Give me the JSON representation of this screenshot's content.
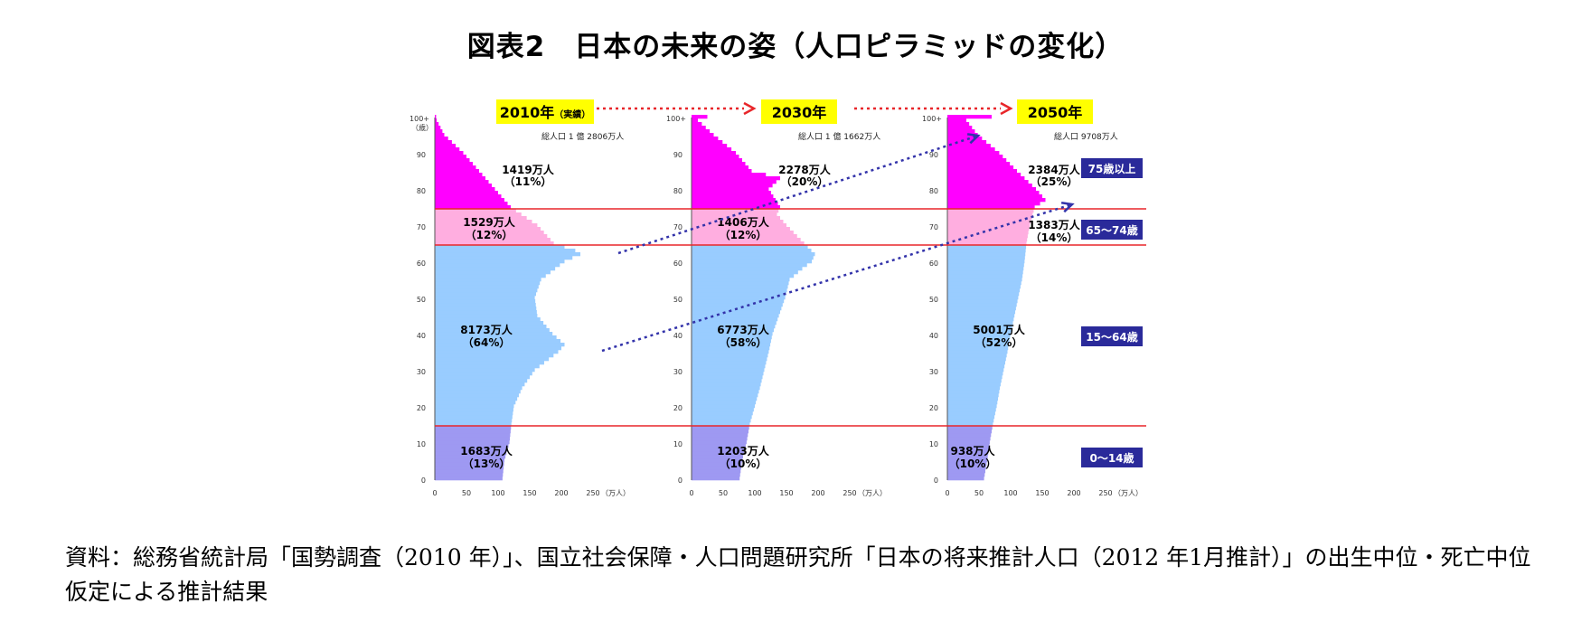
{
  "title": "図表2　日本の未来の姿（人口ピラミッドの変化）",
  "source_note": "資料：総務省統計局「国勢調査（2010 年）」、国立社会保障・人口問題研究所「日本の将来推計人口（2012 年1月推計）」の出生中位・死亡中位仮定による推計結果",
  "colors": {
    "age_75_plus": "#ff00ff",
    "age_65_74": "#ffaee0",
    "age_15_64": "#99ccff",
    "age_0_14": "#9e99f2",
    "boundary_line": "#e8262a",
    "year_label_bg": "#ffff00",
    "arrow": "#e8262a",
    "cohort_line": "#3333aa",
    "age_badge_bg": "#2a2a9a"
  },
  "chart_data": {
    "type": "bar",
    "orientation": "horizontal",
    "y_axis": {
      "top_label": "100+",
      "unit_label": "（歳）",
      "ticks": [
        "0",
        "10",
        "20",
        "30",
        "40",
        "50",
        "60",
        "70",
        "80",
        "90"
      ],
      "range": [
        0,
        100
      ]
    },
    "x_axis": {
      "ticks": [
        "0",
        "50",
        "100",
        "150",
        "200",
        "250"
      ],
      "unit_label": "（万人）",
      "range": [
        0,
        250
      ]
    },
    "age_bands": [
      {
        "label": "75歳以上",
        "from": 75,
        "to": 101
      },
      {
        "label": "65～74歳",
        "from": 65,
        "to": 75
      },
      {
        "label": "15～64歳",
        "from": 15,
        "to": 65
      },
      {
        "label": "0～14歳",
        "from": 0,
        "to": 15
      }
    ],
    "panels": [
      {
        "year_label": "2010年",
        "year_note": "（実績）",
        "total_population": "総人口 1 億 2806万人",
        "groups": [
          {
            "band": "75歳以上",
            "value": "1419万人",
            "share": "（11%）"
          },
          {
            "band": "65～74歳",
            "value": "1529万人",
            "share": "（12%）"
          },
          {
            "band": "15～64歳",
            "value": "8173万人",
            "share": "（64%）"
          },
          {
            "band": "0～14歳",
            "value": "1683万人",
            "share": "（13%）"
          }
        ],
        "ages": [
          0,
          5,
          10,
          15,
          20,
          25,
          30,
          35,
          37,
          40,
          45,
          50,
          55,
          60,
          62,
          63,
          65,
          70,
          75,
          80,
          85,
          90,
          95,
          99,
          100
        ],
        "values": [
          107,
          110,
          118,
          121,
          125,
          138,
          158,
          195,
          205,
          186,
          162,
          158,
          168,
          205,
          230,
          222,
          188,
          162,
          120,
          95,
          70,
          45,
          15,
          3,
          2
        ]
      },
      {
        "year_label": "2030年",
        "year_note": "",
        "total_population": "総人口 1 億 1662万人",
        "groups": [
          {
            "band": "75歳以上",
            "value": "2278万人",
            "share": "（20%）"
          },
          {
            "band": "65～74歳",
            "value": "1406万人",
            "share": "（12%）"
          },
          {
            "band": "15～64歳",
            "value": "6773万人",
            "share": "（58%）"
          },
          {
            "band": "0～14歳",
            "value": "1203万人",
            "share": "（10%）"
          }
        ],
        "ages": [
          0,
          5,
          10,
          15,
          20,
          25,
          30,
          35,
          40,
          45,
          50,
          55,
          58,
          60,
          62,
          65,
          70,
          73,
          75,
          80,
          83,
          85,
          90,
          95,
          99,
          100
        ],
        "values": [
          76,
          80,
          87,
          92,
          100,
          108,
          115,
          122,
          128,
          138,
          148,
          155,
          175,
          190,
          195,
          178,
          150,
          135,
          140,
          122,
          140,
          95,
          70,
          35,
          10,
          25
        ]
      },
      {
        "year_label": "2050年",
        "year_note": "",
        "total_population": "総人口 9708万人",
        "groups": [
          {
            "band": "75歳以上",
            "value": "2384万人",
            "share": "（25%）"
          },
          {
            "band": "65～74歳",
            "value": "1383万人",
            "share": "（14%）"
          },
          {
            "band": "15～64歳",
            "value": "5001万人",
            "share": "（52%）"
          },
          {
            "band": "0～14歳",
            "value": "938万人",
            "share": "（10%）"
          }
        ],
        "ages": [
          0,
          5,
          10,
          15,
          20,
          25,
          30,
          35,
          40,
          45,
          50,
          55,
          60,
          65,
          70,
          75,
          77,
          80,
          85,
          90,
          95,
          99,
          100
        ],
        "values": [
          58,
          63,
          67,
          72,
          78,
          83,
          89,
          95,
          100,
          106,
          112,
          118,
          122,
          125,
          130,
          138,
          155,
          140,
          110,
          82,
          48,
          30,
          70
        ]
      }
    ]
  }
}
